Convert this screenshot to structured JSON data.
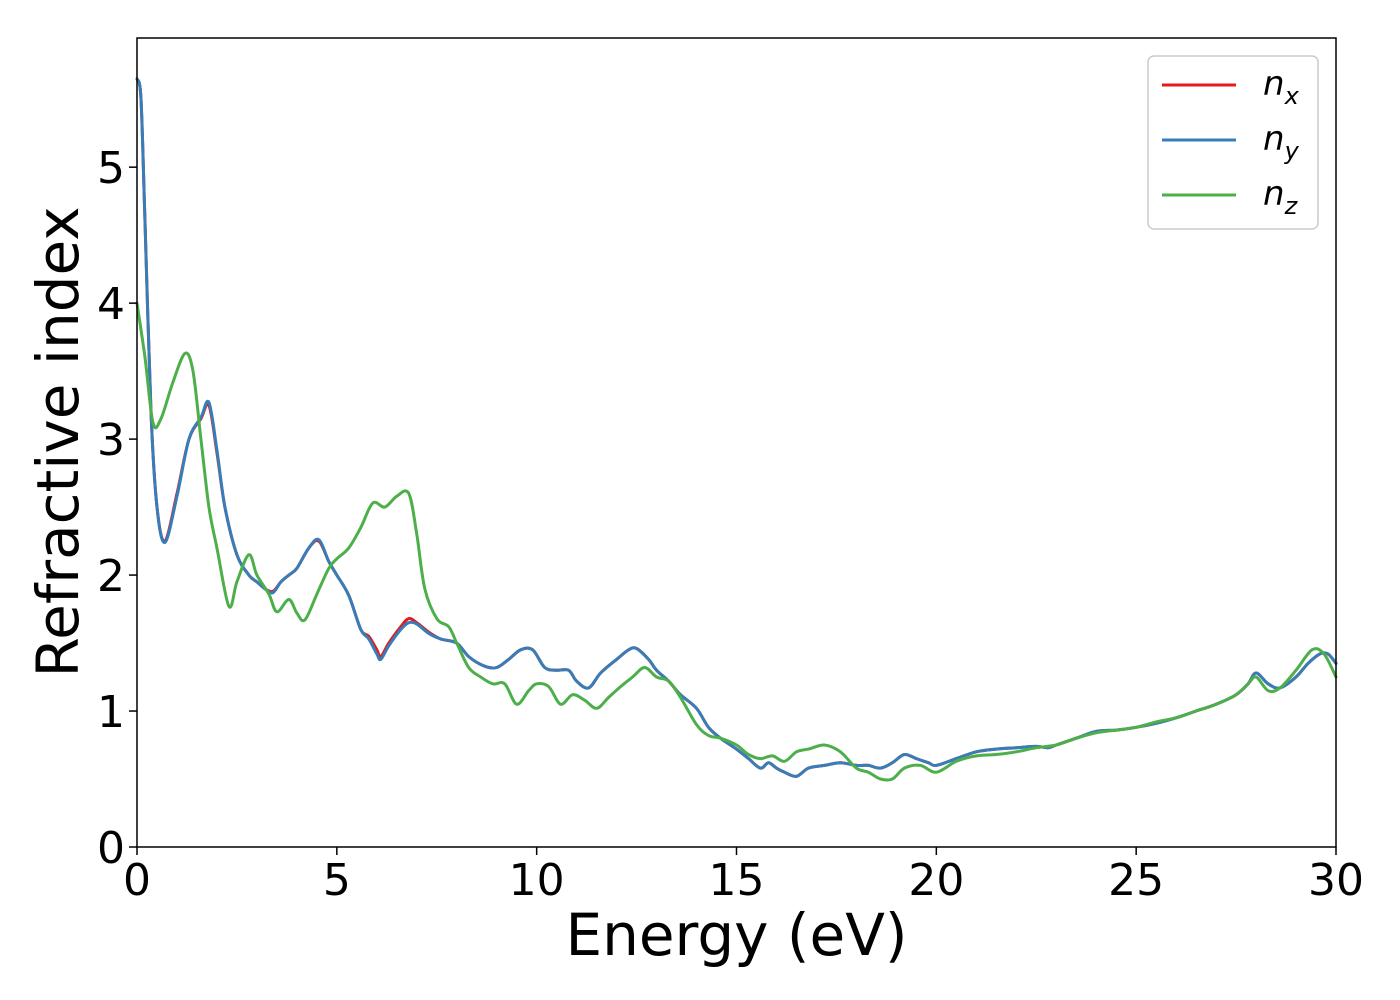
{
  "chart_data": {
    "type": "line",
    "xlabel": "Energy (eV)",
    "ylabel": "Refractive index",
    "xlim": [
      0,
      30
    ],
    "ylim": [
      0,
      5.95
    ],
    "xticks": [
      0,
      5,
      10,
      15,
      20,
      25,
      30
    ],
    "yticks": [
      0,
      1,
      2,
      3,
      4,
      5
    ],
    "grid": false,
    "legend_position": "top-right",
    "series": [
      {
        "name": "n",
        "subscript": "x",
        "color": "#e41a1c",
        "x": [
          0,
          0.1,
          0.2,
          0.35,
          0.5,
          0.7,
          1.0,
          1.3,
          1.6,
          1.8,
          2.0,
          2.2,
          2.5,
          2.8,
          3.0,
          3.2,
          3.4,
          3.6,
          3.8,
          4.0,
          4.3,
          4.55,
          4.8,
          5.0,
          5.3,
          5.6,
          5.8,
          6.0,
          6.1,
          6.3,
          6.6,
          6.8,
          7.0,
          7.3,
          7.6,
          8.0,
          8.3,
          8.7,
          9.0,
          9.3,
          9.6,
          9.9,
          10.2,
          10.5,
          10.8,
          11.0,
          11.3,
          11.6,
          12.0,
          12.3,
          12.5,
          12.8,
          13.0,
          13.3,
          13.6,
          14.0,
          14.3,
          14.6,
          15.0,
          15.3,
          15.6,
          15.8,
          16.0,
          16.2,
          16.5,
          16.8,
          17.2,
          17.6,
          18.0,
          18.3,
          18.6,
          18.9,
          19.2,
          19.5,
          19.8,
          20.0,
          20.5,
          21.0,
          21.5,
          22.0,
          22.5,
          22.8,
          23.0,
          23.5,
          24.0,
          24.5,
          25.0,
          25.5,
          26.0,
          26.5,
          27.0,
          27.5,
          27.8,
          28.0,
          28.3,
          28.6,
          29.0,
          29.3,
          29.6,
          29.8,
          30.0
        ],
        "y": [
          5.65,
          5.5,
          4.6,
          3.2,
          2.5,
          2.25,
          2.6,
          3.0,
          3.15,
          3.25,
          2.9,
          2.5,
          2.15,
          2.0,
          1.95,
          1.9,
          1.88,
          1.95,
          2.0,
          2.05,
          2.2,
          2.25,
          2.1,
          2.0,
          1.85,
          1.6,
          1.55,
          1.45,
          1.4,
          1.5,
          1.62,
          1.68,
          1.65,
          1.58,
          1.53,
          1.5,
          1.4,
          1.33,
          1.32,
          1.38,
          1.45,
          1.45,
          1.32,
          1.3,
          1.3,
          1.22,
          1.17,
          1.28,
          1.38,
          1.45,
          1.46,
          1.38,
          1.3,
          1.22,
          1.12,
          1.02,
          0.88,
          0.8,
          0.72,
          0.65,
          0.58,
          0.62,
          0.58,
          0.55,
          0.52,
          0.58,
          0.6,
          0.62,
          0.6,
          0.6,
          0.58,
          0.62,
          0.68,
          0.65,
          0.62,
          0.6,
          0.65,
          0.7,
          0.72,
          0.73,
          0.74,
          0.73,
          0.75,
          0.8,
          0.85,
          0.86,
          0.88,
          0.91,
          0.95,
          1.0,
          1.05,
          1.12,
          1.2,
          1.28,
          1.2,
          1.17,
          1.25,
          1.35,
          1.42,
          1.42,
          1.35
        ]
      },
      {
        "name": "n",
        "subscript": "y",
        "color": "#377eb8",
        "x": [
          0,
          0.1,
          0.2,
          0.35,
          0.5,
          0.7,
          1.0,
          1.3,
          1.6,
          1.8,
          2.0,
          2.2,
          2.5,
          2.8,
          3.0,
          3.2,
          3.4,
          3.6,
          3.8,
          4.0,
          4.3,
          4.55,
          4.8,
          5.0,
          5.3,
          5.6,
          5.8,
          6.0,
          6.1,
          6.3,
          6.6,
          6.8,
          7.0,
          7.3,
          7.6,
          8.0,
          8.3,
          8.7,
          9.0,
          9.3,
          9.6,
          9.9,
          10.2,
          10.5,
          10.8,
          11.0,
          11.3,
          11.6,
          12.0,
          12.3,
          12.5,
          12.8,
          13.0,
          13.3,
          13.6,
          14.0,
          14.3,
          14.6,
          15.0,
          15.3,
          15.6,
          15.8,
          16.0,
          16.2,
          16.5,
          16.8,
          17.2,
          17.6,
          18.0,
          18.3,
          18.6,
          18.9,
          19.2,
          19.5,
          19.8,
          20.0,
          20.5,
          21.0,
          21.5,
          22.0,
          22.5,
          22.8,
          23.0,
          23.5,
          24.0,
          24.5,
          25.0,
          25.5,
          26.0,
          26.5,
          27.0,
          27.5,
          27.8,
          28.0,
          28.3,
          28.6,
          29.0,
          29.3,
          29.6,
          29.8,
          30.0
        ],
        "y": [
          5.65,
          5.5,
          4.6,
          3.2,
          2.5,
          2.24,
          2.58,
          3.0,
          3.16,
          3.27,
          2.92,
          2.5,
          2.15,
          2.0,
          1.95,
          1.9,
          1.87,
          1.95,
          2.0,
          2.05,
          2.2,
          2.26,
          2.1,
          2.0,
          1.85,
          1.6,
          1.53,
          1.42,
          1.38,
          1.48,
          1.6,
          1.65,
          1.64,
          1.57,
          1.53,
          1.5,
          1.4,
          1.33,
          1.32,
          1.38,
          1.45,
          1.45,
          1.32,
          1.3,
          1.3,
          1.22,
          1.17,
          1.28,
          1.38,
          1.45,
          1.46,
          1.38,
          1.3,
          1.22,
          1.12,
          1.02,
          0.88,
          0.8,
          0.72,
          0.65,
          0.58,
          0.62,
          0.58,
          0.55,
          0.52,
          0.58,
          0.6,
          0.62,
          0.6,
          0.6,
          0.58,
          0.62,
          0.68,
          0.65,
          0.62,
          0.6,
          0.65,
          0.7,
          0.72,
          0.73,
          0.74,
          0.73,
          0.75,
          0.8,
          0.85,
          0.86,
          0.88,
          0.91,
          0.95,
          1.0,
          1.05,
          1.12,
          1.2,
          1.28,
          1.2,
          1.17,
          1.25,
          1.35,
          1.42,
          1.42,
          1.35
        ]
      },
      {
        "name": "n",
        "subscript": "z",
        "color": "#4daf4a",
        "x": [
          0,
          0.2,
          0.4,
          0.6,
          0.9,
          1.2,
          1.4,
          1.6,
          1.8,
          2.0,
          2.3,
          2.5,
          2.8,
          3.0,
          3.3,
          3.5,
          3.8,
          4.0,
          4.2,
          4.5,
          4.8,
          5.0,
          5.3,
          5.6,
          5.9,
          6.2,
          6.5,
          6.8,
          7.0,
          7.2,
          7.5,
          7.8,
          8.0,
          8.3,
          8.6,
          8.9,
          9.2,
          9.5,
          9.8,
          10.0,
          10.3,
          10.6,
          10.9,
          11.2,
          11.5,
          11.8,
          12.1,
          12.4,
          12.7,
          13.0,
          13.3,
          13.6,
          14.0,
          14.3,
          14.6,
          15.0,
          15.3,
          15.6,
          15.9,
          16.2,
          16.5,
          16.8,
          17.2,
          17.6,
          18.0,
          18.3,
          18.6,
          18.9,
          19.2,
          19.6,
          20.0,
          20.5,
          21.0,
          21.5,
          22.0,
          22.5,
          23.0,
          23.5,
          24.0,
          24.5,
          25.0,
          25.5,
          26.0,
          26.5,
          27.0,
          27.5,
          27.8,
          28.0,
          28.3,
          28.6,
          29.0,
          29.4,
          29.7,
          30.0
        ],
        "y": [
          4.0,
          3.6,
          3.12,
          3.15,
          3.42,
          3.63,
          3.5,
          3.0,
          2.5,
          2.2,
          1.77,
          1.95,
          2.15,
          2.0,
          1.86,
          1.73,
          1.82,
          1.72,
          1.67,
          1.86,
          2.05,
          2.12,
          2.2,
          2.35,
          2.53,
          2.5,
          2.58,
          2.6,
          2.3,
          1.9,
          1.68,
          1.62,
          1.5,
          1.32,
          1.25,
          1.2,
          1.2,
          1.05,
          1.15,
          1.2,
          1.18,
          1.05,
          1.12,
          1.08,
          1.02,
          1.1,
          1.18,
          1.25,
          1.32,
          1.25,
          1.22,
          1.1,
          0.9,
          0.82,
          0.8,
          0.75,
          0.68,
          0.65,
          0.67,
          0.63,
          0.7,
          0.72,
          0.75,
          0.7,
          0.58,
          0.55,
          0.5,
          0.5,
          0.58,
          0.6,
          0.55,
          0.63,
          0.67,
          0.68,
          0.7,
          0.73,
          0.75,
          0.8,
          0.84,
          0.86,
          0.88,
          0.92,
          0.95,
          1.0,
          1.05,
          1.12,
          1.2,
          1.25,
          1.15,
          1.17,
          1.3,
          1.45,
          1.42,
          1.25
        ]
      }
    ]
  }
}
